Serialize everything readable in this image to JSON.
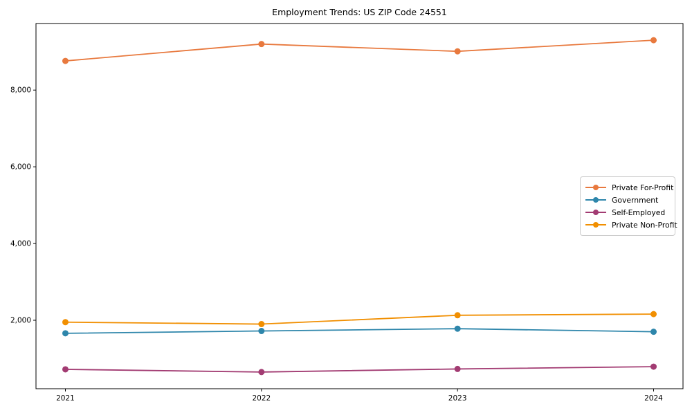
{
  "chart_data": {
    "type": "line",
    "title": "Employment Trends: US ZIP Code 24551",
    "x": [
      2021,
      2022,
      2023,
      2024
    ],
    "xtick_labels": [
      "2021",
      "2022",
      "2023",
      "2024"
    ],
    "yticks": [
      2000,
      4000,
      6000,
      8000
    ],
    "ytick_labels": [
      "2,000",
      "4,000",
      "6,000",
      "8,000"
    ],
    "xlim": [
      2020.85,
      2024.15
    ],
    "ylim": [
      215,
      9735
    ],
    "grid": false,
    "legend_position": "center-right",
    "series": [
      {
        "name": "Private For-Profit",
        "color": "#E8793E",
        "values": [
          8760,
          9200,
          9010,
          9300
        ]
      },
      {
        "name": "Government",
        "color": "#2E86AB",
        "values": [
          1660,
          1720,
          1780,
          1700
        ]
      },
      {
        "name": "Self-Employed",
        "color": "#A23B72",
        "values": [
          720,
          650,
          730,
          790
        ]
      },
      {
        "name": "Private Non-Profit",
        "color": "#F18F01",
        "values": [
          1950,
          1900,
          2130,
          2160
        ]
      }
    ],
    "axis_color": "#000000",
    "tick_font_size": 10.5
  }
}
